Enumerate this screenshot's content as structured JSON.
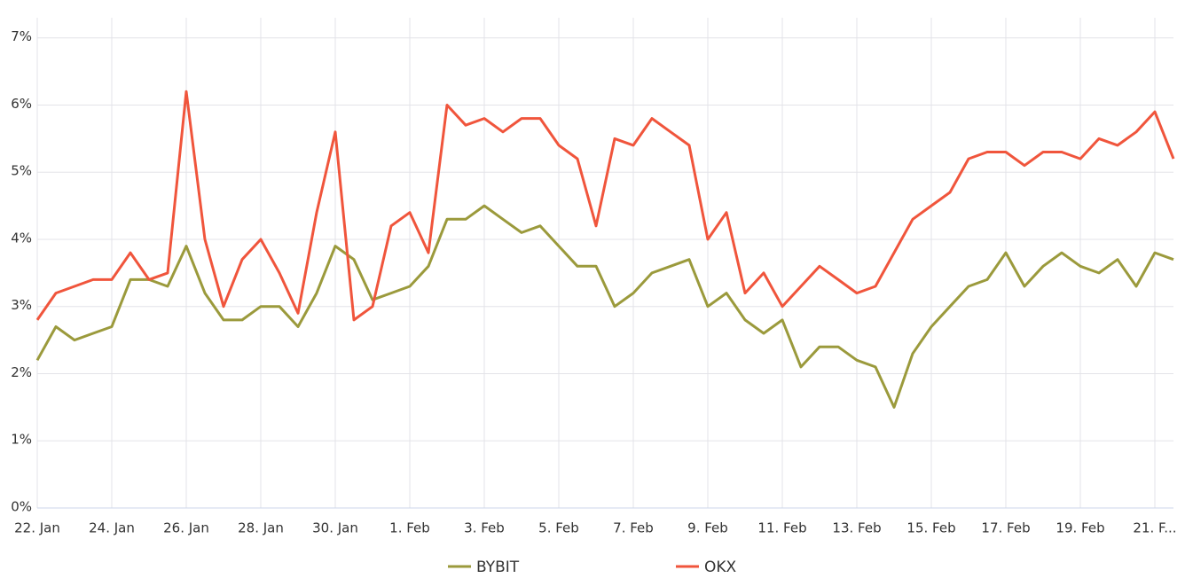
{
  "chart_data": {
    "type": "line",
    "x": [
      0,
      0.5,
      1,
      1.5,
      2,
      2.5,
      3,
      3.5,
      4,
      4.5,
      5,
      5.5,
      6,
      6.5,
      7,
      7.5,
      8,
      8.5,
      9,
      9.5,
      10,
      10.5,
      11,
      11.5,
      12,
      12.5,
      13,
      13.5,
      14,
      14.5,
      15,
      15.5,
      16,
      16.5,
      17,
      17.5,
      18,
      18.5,
      19,
      19.5,
      20,
      20.5,
      21,
      21.5,
      22,
      22.5,
      23,
      23.5,
      24,
      24.5,
      25,
      25.5,
      26,
      26.5,
      27,
      27.5,
      28,
      28.5,
      29,
      29.5,
      30,
      30.5
    ],
    "series": [
      {
        "name": "BYBIT",
        "color": "#9b9a3c",
        "values": [
          2.2,
          2.7,
          2.5,
          2.6,
          2.7,
          3.4,
          3.4,
          3.3,
          3.9,
          3.2,
          2.8,
          2.8,
          3.0,
          3.0,
          2.7,
          3.2,
          3.9,
          3.7,
          3.1,
          3.2,
          3.3,
          3.6,
          4.3,
          4.3,
          4.5,
          4.3,
          4.1,
          4.2,
          3.9,
          3.6,
          3.6,
          3.0,
          3.2,
          3.5,
          3.6,
          3.7,
          3.0,
          3.2,
          2.8,
          2.6,
          2.8,
          2.1,
          2.4,
          2.4,
          2.2,
          2.1,
          1.5,
          2.3,
          2.7,
          3.0,
          3.3,
          3.4,
          3.8,
          3.3,
          3.6,
          3.8,
          3.6,
          3.5,
          3.7,
          3.3,
          3.8,
          3.7
        ]
      },
      {
        "name": "OKX",
        "color": "#f0553c",
        "values": [
          2.8,
          3.2,
          3.3,
          3.4,
          3.4,
          3.8,
          3.4,
          3.5,
          6.2,
          4.0,
          3.0,
          3.7,
          4.0,
          3.5,
          2.9,
          4.4,
          5.6,
          2.8,
          3.0,
          4.2,
          4.4,
          3.8,
          6.0,
          5.7,
          5.8,
          5.6,
          5.8,
          5.8,
          5.4,
          5.2,
          4.2,
          5.5,
          5.4,
          5.8,
          5.6,
          5.4,
          4.0,
          4.4,
          3.2,
          3.5,
          3.0,
          3.3,
          3.6,
          3.4,
          3.2,
          3.3,
          3.8,
          4.3,
          4.5,
          4.7,
          5.2,
          5.3,
          5.3,
          5.1,
          5.3,
          5.3,
          5.2,
          5.5,
          5.4,
          5.6,
          5.9,
          5.2
        ]
      }
    ],
    "xlim": [
      0,
      30.5
    ],
    "xticks": [
      {
        "value": 0,
        "label": "22. Jan"
      },
      {
        "value": 2,
        "label": "24. Jan"
      },
      {
        "value": 4,
        "label": "26. Jan"
      },
      {
        "value": 6,
        "label": "28. Jan"
      },
      {
        "value": 8,
        "label": "30. Jan"
      },
      {
        "value": 10,
        "label": "1. Feb"
      },
      {
        "value": 12,
        "label": "3. Feb"
      },
      {
        "value": 14,
        "label": "5. Feb"
      },
      {
        "value": 16,
        "label": "7. Feb"
      },
      {
        "value": 18,
        "label": "9. Feb"
      },
      {
        "value": 20,
        "label": "11. Feb"
      },
      {
        "value": 22,
        "label": "13. Feb"
      },
      {
        "value": 24,
        "label": "15. Feb"
      },
      {
        "value": 26,
        "label": "17. Feb"
      },
      {
        "value": 28,
        "label": "19. Feb"
      },
      {
        "value": 30,
        "label": "21. F..."
      }
    ],
    "ylim": [
      0,
      7.3
    ],
    "yticks": [
      {
        "value": 0,
        "label": "0%"
      },
      {
        "value": 1,
        "label": "1%"
      },
      {
        "value": 2,
        "label": "2%"
      },
      {
        "value": 3,
        "label": "3%"
      },
      {
        "value": 4,
        "label": "4%"
      },
      {
        "value": 5,
        "label": "5%"
      },
      {
        "value": 6,
        "label": "6%"
      },
      {
        "value": 7,
        "label": "7%"
      }
    ],
    "grid": true
  }
}
